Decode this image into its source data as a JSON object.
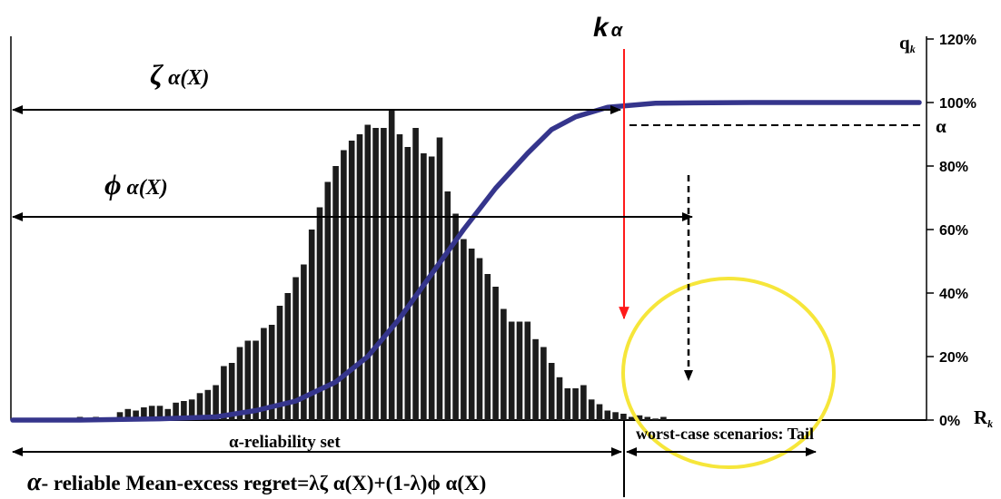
{
  "chart_data": {
    "type": "bar",
    "title": "",
    "right_axis": {
      "label": "q",
      "label_sub": "k",
      "ticks": [
        "0%",
        "20%",
        "40%",
        "60%",
        "80%",
        "100%",
        "120%"
      ],
      "range": [
        0,
        1.2
      ]
    },
    "x_axis": {
      "label": "R",
      "label_sub": "k"
    },
    "bars": [
      0.01,
      0.005,
      0.01,
      0.005,
      0.005,
      0.025,
      0.035,
      0.03,
      0.04,
      0.045,
      0.045,
      0.035,
      0.055,
      0.06,
      0.065,
      0.085,
      0.095,
      0.11,
      0.17,
      0.18,
      0.23,
      0.25,
      0.25,
      0.29,
      0.3,
      0.36,
      0.4,
      0.45,
      0.49,
      0.6,
      0.67,
      0.75,
      0.8,
      0.85,
      0.88,
      0.9,
      0.93,
      0.92,
      0.92,
      0.98,
      0.9,
      0.86,
      0.92,
      0.84,
      0.83,
      0.89,
      0.72,
      0.65,
      0.57,
      0.54,
      0.51,
      0.46,
      0.42,
      0.35,
      0.31,
      0.31,
      0.31,
      0.255,
      0.23,
      0.18,
      0.135,
      0.1,
      0.1,
      0.11,
      0.065,
      0.05,
      0.03,
      0.025,
      0.02,
      0.01,
      0.015,
      0.01,
      0.005,
      0.01
    ],
    "cumulative_curve": {
      "series": "cumulative distribution",
      "points": [
        [
          0,
          0.0
        ],
        [
          10,
          0.004
        ],
        [
          17,
          0.01
        ],
        [
          22,
          0.03
        ],
        [
          27,
          0.06
        ],
        [
          32,
          0.12
        ],
        [
          36,
          0.2
        ],
        [
          40,
          0.32
        ],
        [
          44,
          0.46
        ],
        [
          48,
          0.6
        ],
        [
          52,
          0.73
        ],
        [
          56,
          0.84
        ],
        [
          59,
          0.915
        ],
        [
          62,
          0.955
        ],
        [
          66,
          0.985
        ],
        [
          72,
          0.998
        ],
        [
          84,
          1.0
        ]
      ]
    },
    "alpha_level": 0.93,
    "k_alpha_index": 55.7,
    "tail_mean_index": 61.5,
    "annotations": {
      "k_alpha": "k",
      "k_alpha_sub": "α",
      "alpha": "α",
      "zeta_label": "ζ",
      "zeta_arg": "α(X)",
      "phi_label": "ϕ",
      "phi_arg": "α(X)",
      "reliability_set": "α-reliability set",
      "worst_case": "worst-case scenarios: Tail",
      "formula_prefix": "α",
      "formula_text": "- reliable Mean-excess regret=λζ α(X)+(1-λ)ϕ α(X)"
    },
    "colors": {
      "bars": "#1c1c1c",
      "curve": "#35358c",
      "k_alpha_arrow": "#ff1a1a",
      "tail_circle": "#f6e63a"
    }
  }
}
